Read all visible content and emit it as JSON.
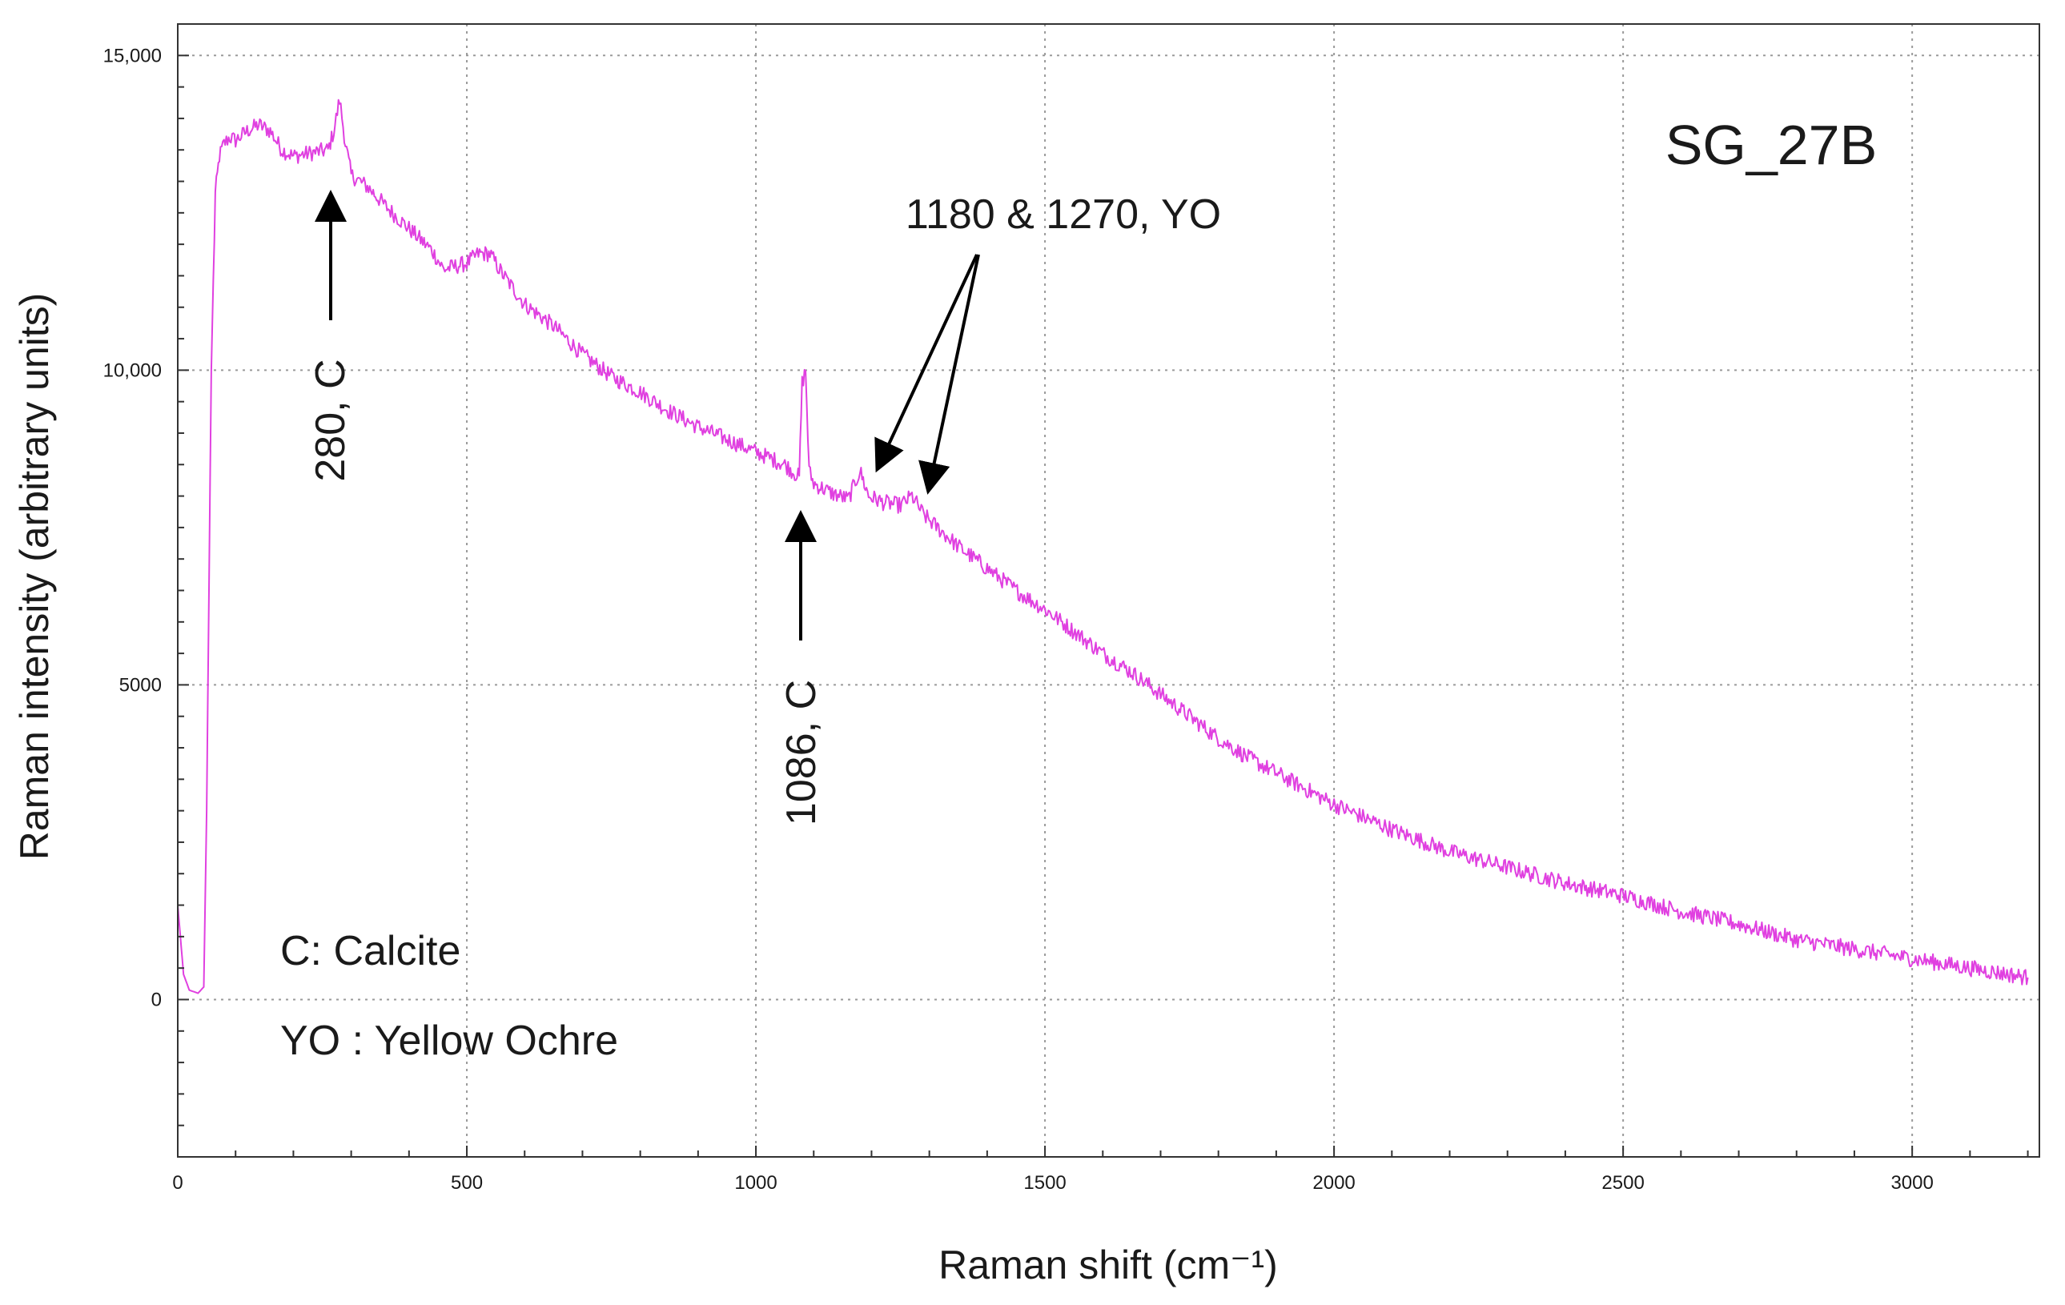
{
  "chart_data": {
    "type": "line",
    "title": "",
    "sample_label": "SG_27B",
    "xlabel": "Raman shift (cm⁻¹)",
    "ylabel": "Raman intensity (arbitrary units)",
    "xlim": [
      0,
      3220
    ],
    "ylim": [
      -2500,
      15500
    ],
    "grid": true,
    "x_ticks": [
      0,
      500,
      1000,
      1500,
      2000,
      2500,
      3000
    ],
    "x_tick_labels": [
      "0",
      "500",
      "1000",
      "1500",
      "2000",
      "2500",
      "3000"
    ],
    "y_ticks": [
      0,
      5000,
      10000,
      15000
    ],
    "y_tick_labels": [
      "0",
      "5000",
      "10,000",
      "15,000"
    ],
    "series": [
      {
        "name": "SG_27B spectrum",
        "color": "#e040e0",
        "x": [
          0,
          10,
          20,
          35,
          45,
          50,
          58,
          65,
          72,
          80,
          90,
          100,
          120,
          140,
          160,
          180,
          200,
          230,
          260,
          270,
          280,
          290,
          300,
          330,
          360,
          400,
          440,
          460,
          480,
          500,
          520,
          540,
          560,
          600,
          650,
          700,
          750,
          800,
          850,
          900,
          950,
          1000,
          1050,
          1075,
          1080,
          1086,
          1092,
          1100,
          1130,
          1160,
          1180,
          1195,
          1220,
          1250,
          1270,
          1290,
          1320,
          1350,
          1400,
          1450,
          1500,
          1550,
          1600,
          1650,
          1700,
          1750,
          1800,
          1850,
          1900,
          1950,
          2000,
          2100,
          2200,
          2300,
          2400,
          2500,
          2600,
          2700,
          2800,
          2900,
          3000,
          3100,
          3200
        ],
        "y": [
          1500,
          400,
          150,
          100,
          200,
          3000,
          10000,
          12800,
          13400,
          13600,
          13700,
          13650,
          13800,
          13900,
          13800,
          13500,
          13400,
          13450,
          13500,
          13800,
          14300,
          13600,
          13100,
          12900,
          12600,
          12250,
          11900,
          11600,
          11650,
          11700,
          11850,
          11850,
          11550,
          11050,
          10700,
          10250,
          9900,
          9650,
          9350,
          9100,
          8900,
          8700,
          8500,
          8300,
          9800,
          10000,
          8400,
          8200,
          8050,
          7950,
          8400,
          8000,
          7900,
          7850,
          8000,
          7700,
          7450,
          7200,
          6850,
          6500,
          6200,
          5850,
          5500,
          5200,
          4850,
          4500,
          4150,
          3850,
          3600,
          3350,
          3100,
          2700,
          2350,
          2100,
          1850,
          1650,
          1400,
          1200,
          950,
          800,
          650,
          500,
          350
        ]
      }
    ],
    "annotations": [
      {
        "text": "280, C",
        "x": 280,
        "y": 14000
      },
      {
        "text": "1086, C",
        "x": 1086,
        "y": 8300
      },
      {
        "text": "1180 & 1270, YO",
        "x": [
          1180,
          1270
        ],
        "y": [
          8400,
          8000
        ]
      }
    ],
    "legend": [
      "C: Calcite",
      "YO : Yellow Ochre"
    ]
  }
}
